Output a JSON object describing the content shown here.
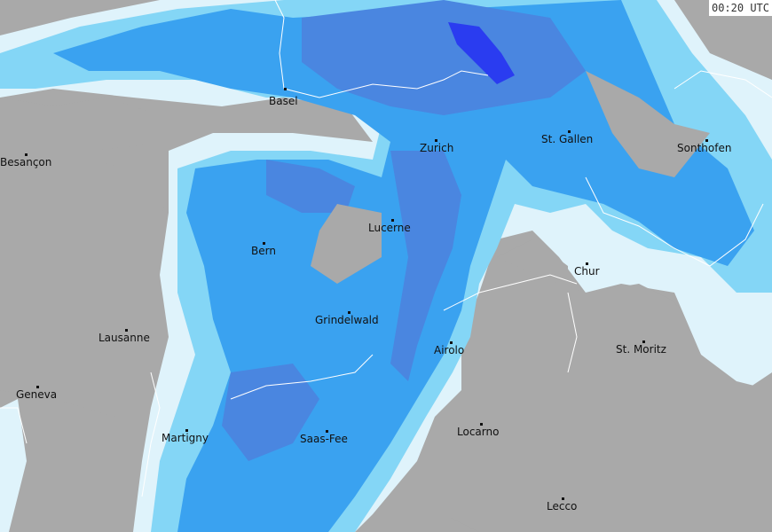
{
  "timestamp": "00:20 UTC",
  "legend_colors": {
    "land": "#a9a9a9",
    "very_light": "#dff3fb",
    "light": "#84d6f6",
    "moderate": "#3aa2f0",
    "heavy": "#4a86e0",
    "very_heavy": "#2233f0",
    "borders": "#ffffff"
  },
  "cities": [
    {
      "name": "Basel"
    },
    {
      "name": "Besançon"
    },
    {
      "name": "Zurich"
    },
    {
      "name": "St. Gallen"
    },
    {
      "name": "Sonthofen"
    },
    {
      "name": "Lucerne"
    },
    {
      "name": "Bern"
    },
    {
      "name": "Chur"
    },
    {
      "name": "Grindelwald"
    },
    {
      "name": "Lausanne"
    },
    {
      "name": "Airolo"
    },
    {
      "name": "St. Moritz"
    },
    {
      "name": "Geneva"
    },
    {
      "name": "Locarno"
    },
    {
      "name": "Martigny"
    },
    {
      "name": "Saas-Fee"
    },
    {
      "name": "Lecco"
    }
  ]
}
